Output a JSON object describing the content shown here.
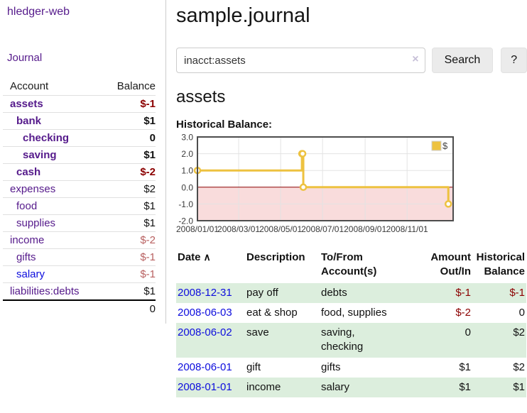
{
  "app": {
    "brand": "hledger-web",
    "nav_journal": "Journal"
  },
  "sidebar": {
    "header": {
      "account": "Account",
      "balance": "Balance"
    },
    "accounts": [
      {
        "name": "assets",
        "balance": "$-1",
        "indent": 1,
        "bold": true
      },
      {
        "name": "bank",
        "balance": "$1",
        "indent": 2,
        "bold": true
      },
      {
        "name": "checking",
        "balance": "0",
        "indent": 3,
        "bold": true
      },
      {
        "name": "saving",
        "balance": "$1",
        "indent": 3,
        "bold": true
      },
      {
        "name": "cash",
        "balance": "$-2",
        "indent": 2,
        "bold": true
      },
      {
        "name": "expenses",
        "balance": "$2",
        "indent": 1,
        "bold": false
      },
      {
        "name": "food",
        "balance": "$1",
        "indent": 2,
        "bold": false
      },
      {
        "name": "supplies",
        "balance": "$1",
        "indent": 2,
        "bold": false
      },
      {
        "name": "income",
        "balance": "$-2",
        "indent": 1,
        "bold": false
      },
      {
        "name": "gifts",
        "balance": "$-1",
        "indent": 2,
        "bold": false
      },
      {
        "name": "salary",
        "balance": "$-1",
        "indent": 2,
        "bold": false,
        "blue": true
      },
      {
        "name": "liabilities:debts",
        "balance": "$1",
        "indent": 1,
        "bold": false
      }
    ],
    "total": "0"
  },
  "main": {
    "title": "sample.journal",
    "search": {
      "value": "inacct:assets",
      "clear_icon": "×",
      "button_label": "Search",
      "help_label": "?"
    },
    "account_heading": "assets",
    "chart_heading": "Historical Balance:"
  },
  "register": {
    "columns": [
      {
        "label": "Date",
        "align": "left"
      },
      {
        "label": "Description",
        "align": "left"
      },
      {
        "label": "To/From Account(s)",
        "align": "left"
      },
      {
        "label": "Amount Out/In",
        "align": "right"
      },
      {
        "label": "Historical Balance",
        "align": "right"
      }
    ],
    "sort_icon_glyph": "∧",
    "rows": [
      {
        "date": "2008-12-31",
        "description": "pay off",
        "accounts": "debts",
        "amount": "$-1",
        "balance": "$-1"
      },
      {
        "date": "2008-06-03",
        "description": "eat & shop",
        "accounts": "food, supplies",
        "amount": "$-2",
        "balance": "0"
      },
      {
        "date": "2008-06-02",
        "description": "save",
        "accounts": "saving, checking",
        "amount": "0",
        "balance": "$2"
      },
      {
        "date": "2008-06-01",
        "description": "gift",
        "accounts": "gifts",
        "amount": "$1",
        "balance": "$2"
      },
      {
        "date": "2008-01-01",
        "description": "income",
        "accounts": "salary",
        "amount": "$1",
        "balance": "$1"
      }
    ]
  },
  "chart_data": {
    "type": "line",
    "title": "Historical Balance:",
    "step": true,
    "series": [
      {
        "name": "$",
        "color": "#edc240",
        "points": [
          {
            "x": "2008-01-01",
            "y": 1
          },
          {
            "x": "2008-06-01",
            "y": 2
          },
          {
            "x": "2008-06-02",
            "y": 2
          },
          {
            "x": "2008-06-03",
            "y": 0
          },
          {
            "x": "2008-12-31",
            "y": -1
          }
        ]
      }
    ],
    "x_range": [
      "2008-01-01",
      "2009-01-07"
    ],
    "y_range": [
      -2,
      3
    ],
    "x_ticks": [
      "2008/01/01",
      "2008/03/01",
      "2008/05/01",
      "2008/07/01",
      "2008/09/01",
      "2008/11/01"
    ],
    "y_ticks": [
      3.0,
      2.0,
      1.0,
      0.0,
      -1.0,
      -2.0
    ],
    "grid": true,
    "legend_position": "top-right",
    "legend_label": "$",
    "negative_region_color": "#f9dcdc",
    "zero_line_color": "#8b0000",
    "plot_border_color": "#4d4d4d"
  },
  "colors": {
    "accent_purple": "#551a8b",
    "link_blue": "#0d0ddd",
    "negative_strong": "#8b0000",
    "negative_soft": "#b86060",
    "row_stripe_green": "#dceedd",
    "chart_line_gold": "#edc240"
  }
}
